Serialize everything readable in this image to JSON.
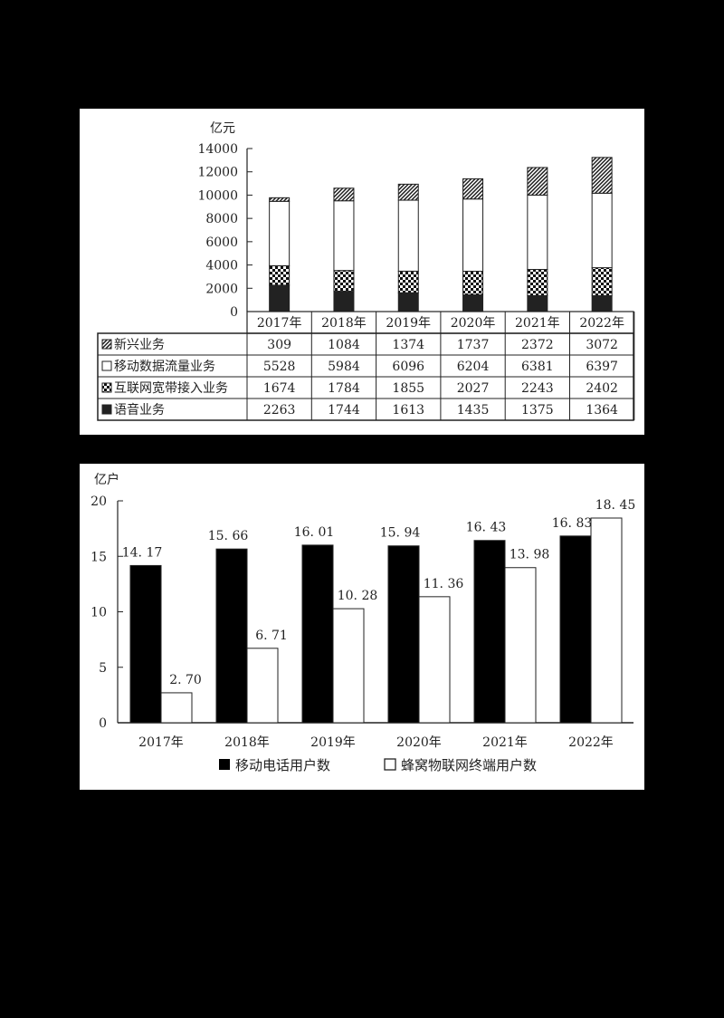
{
  "chart_data": [
    {
      "type": "bar",
      "stacked": true,
      "title": "",
      "ylabel": "亿元",
      "xlabel": "",
      "ylim": [
        0,
        14000
      ],
      "yticks": [
        0,
        2000,
        4000,
        6000,
        8000,
        10000,
        12000,
        14000
      ],
      "categories": [
        "2017年",
        "2018年",
        "2019年",
        "2020年",
        "2021年",
        "2022年"
      ],
      "series": [
        {
          "name": "语音业务",
          "pattern": "solid-dark",
          "values": [
            2263,
            1744,
            1613,
            1435,
            1375,
            1364
          ]
        },
        {
          "name": "互联网宽带接入业务",
          "pattern": "checker",
          "values": [
            1674,
            1784,
            1855,
            2027,
            2243,
            2402
          ]
        },
        {
          "name": "移动数据流量业务",
          "pattern": "white",
          "values": [
            5528,
            5984,
            6096,
            6204,
            6381,
            6397
          ]
        },
        {
          "name": "新兴业务",
          "pattern": "diagonal-hatch",
          "values": [
            309,
            1084,
            1374,
            1737,
            2372,
            3072
          ]
        }
      ],
      "table_row_order": [
        "新兴业务",
        "移动数据流量业务",
        "互联网宽带接入业务",
        "语音业务"
      ],
      "grid": false,
      "legend_position": "data-table-left"
    },
    {
      "type": "bar",
      "stacked": false,
      "title": "",
      "ylabel": "亿户",
      "xlabel": "",
      "ylim": [
        0,
        20
      ],
      "yticks": [
        0,
        5,
        10,
        15,
        20
      ],
      "categories": [
        "2017年",
        "2018年",
        "2019年",
        "2020年",
        "2021年",
        "2022年"
      ],
      "series": [
        {
          "name": "移动电话用户数",
          "color": "#000000",
          "values": [
            14.17,
            15.66,
            16.01,
            15.94,
            16.43,
            16.83
          ],
          "labels": [
            "14. 17",
            "15. 66",
            "16. 01",
            "15. 94",
            "16. 43",
            "16. 83"
          ]
        },
        {
          "name": "蜂窝物联网终端用户数",
          "color": "#ffffff",
          "values": [
            2.7,
            6.71,
            10.28,
            11.36,
            13.98,
            18.45
          ],
          "labels": [
            "2. 70",
            "6. 71",
            "10. 28",
            "11. 36",
            "13. 98",
            "18. 45"
          ]
        }
      ],
      "grid": false,
      "legend_position": "bottom"
    }
  ]
}
